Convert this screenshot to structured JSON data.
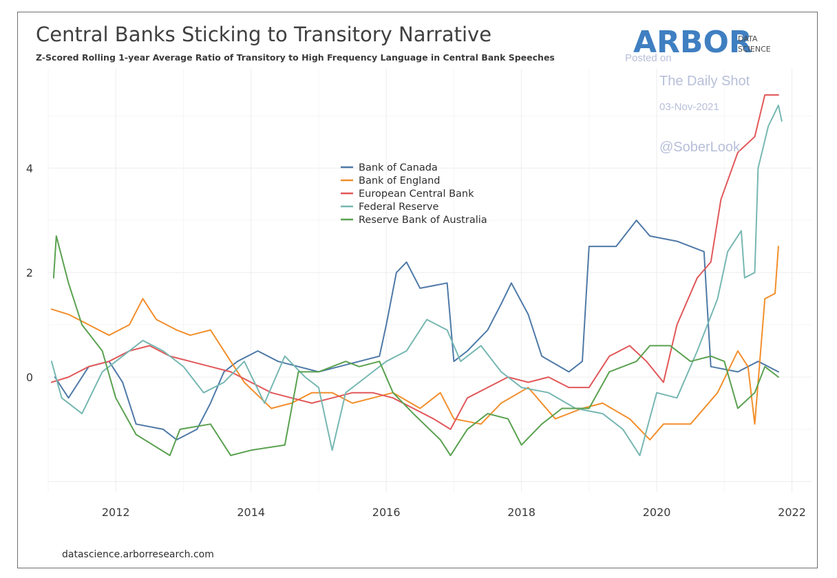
{
  "chart_data": {
    "type": "line",
    "title": "Central Banks Sticking to Transitory Narrative",
    "subtitle": "Z-Scored Rolling 1-year Average Ratio of Transitory to High Frequency Language in Central Bank Speeches",
    "xlabel": "",
    "ylabel": "",
    "xlim": [
      2011.0,
      2022.3
    ],
    "ylim": [
      -2.2,
      5.9
    ],
    "x_ticks": [
      2012,
      2014,
      2016,
      2018,
      2020,
      2022
    ],
    "y_ticks": [
      0,
      2,
      4
    ],
    "grid": true,
    "legend_position": "center-top",
    "series": [
      {
        "name": "Bank of Canada",
        "color": "#4e79a7",
        "points": [
          [
            2011.1,
            0.0
          ],
          [
            2011.3,
            -0.4
          ],
          [
            2011.6,
            0.2
          ],
          [
            2011.9,
            0.3
          ],
          [
            2012.1,
            -0.1
          ],
          [
            2012.3,
            -0.9
          ],
          [
            2012.7,
            -1.0
          ],
          [
            2012.9,
            -1.2
          ],
          [
            2013.2,
            -1.0
          ],
          [
            2013.4,
            -0.5
          ],
          [
            2013.6,
            0.1
          ],
          [
            2013.8,
            0.3
          ],
          [
            2014.1,
            0.5
          ],
          [
            2014.4,
            0.3
          ],
          [
            2014.7,
            0.2
          ],
          [
            2015.0,
            0.1
          ],
          [
            2015.3,
            0.2
          ],
          [
            2015.6,
            0.3
          ],
          [
            2015.9,
            0.4
          ],
          [
            2016.0,
            1.0
          ],
          [
            2016.15,
            2.0
          ],
          [
            2016.3,
            2.2
          ],
          [
            2016.5,
            1.7
          ],
          [
            2016.9,
            1.8
          ],
          [
            2017.0,
            0.3
          ],
          [
            2017.2,
            0.5
          ],
          [
            2017.5,
            0.9
          ],
          [
            2017.7,
            1.4
          ],
          [
            2017.85,
            1.8
          ],
          [
            2018.1,
            1.2
          ],
          [
            2018.3,
            0.4
          ],
          [
            2018.7,
            0.1
          ],
          [
            2018.9,
            0.3
          ],
          [
            2019.0,
            2.5
          ],
          [
            2019.4,
            2.5
          ],
          [
            2019.7,
            3.0
          ],
          [
            2019.9,
            2.7
          ],
          [
            2020.3,
            2.6
          ],
          [
            2020.7,
            2.4
          ],
          [
            2020.8,
            0.2
          ],
          [
            2021.2,
            0.1
          ],
          [
            2021.5,
            0.3
          ],
          [
            2021.8,
            0.1
          ]
        ]
      },
      {
        "name": "Bank of England",
        "color": "#f28e2b",
        "points": [
          [
            2011.05,
            1.3
          ],
          [
            2011.3,
            1.2
          ],
          [
            2011.6,
            1.0
          ],
          [
            2011.9,
            0.8
          ],
          [
            2012.2,
            1.0
          ],
          [
            2012.4,
            1.5
          ],
          [
            2012.6,
            1.1
          ],
          [
            2012.9,
            0.9
          ],
          [
            2013.1,
            0.8
          ],
          [
            2013.4,
            0.9
          ],
          [
            2013.7,
            0.3
          ],
          [
            2013.9,
            -0.1
          ],
          [
            2014.3,
            -0.6
          ],
          [
            2014.6,
            -0.5
          ],
          [
            2014.9,
            -0.3
          ],
          [
            2015.2,
            -0.3
          ],
          [
            2015.5,
            -0.5
          ],
          [
            2015.8,
            -0.4
          ],
          [
            2016.1,
            -0.3
          ],
          [
            2016.5,
            -0.6
          ],
          [
            2016.8,
            -0.3
          ],
          [
            2017.0,
            -0.8
          ],
          [
            2017.4,
            -0.9
          ],
          [
            2017.7,
            -0.5
          ],
          [
            2018.1,
            -0.2
          ],
          [
            2018.5,
            -0.8
          ],
          [
            2018.9,
            -0.6
          ],
          [
            2019.2,
            -0.5
          ],
          [
            2019.6,
            -0.8
          ],
          [
            2019.9,
            -1.2
          ],
          [
            2020.1,
            -0.9
          ],
          [
            2020.5,
            -0.9
          ],
          [
            2020.9,
            -0.3
          ],
          [
            2021.2,
            0.5
          ],
          [
            2021.35,
            0.2
          ],
          [
            2021.45,
            -0.9
          ],
          [
            2021.6,
            1.5
          ],
          [
            2021.75,
            1.6
          ],
          [
            2021.8,
            2.5
          ]
        ]
      },
      {
        "name": "European Central Bank",
        "color": "#e15759",
        "points": [
          [
            2011.05,
            -0.1
          ],
          [
            2011.3,
            0.0
          ],
          [
            2011.6,
            0.2
          ],
          [
            2011.9,
            0.3
          ],
          [
            2012.2,
            0.5
          ],
          [
            2012.5,
            0.6
          ],
          [
            2012.8,
            0.4
          ],
          [
            2013.1,
            0.3
          ],
          [
            2013.4,
            0.2
          ],
          [
            2013.7,
            0.1
          ],
          [
            2014.0,
            -0.1
          ],
          [
            2014.3,
            -0.3
          ],
          [
            2014.6,
            -0.4
          ],
          [
            2014.9,
            -0.5
          ],
          [
            2015.2,
            -0.4
          ],
          [
            2015.5,
            -0.3
          ],
          [
            2015.8,
            -0.3
          ],
          [
            2016.1,
            -0.4
          ],
          [
            2016.4,
            -0.6
          ],
          [
            2016.7,
            -0.8
          ],
          [
            2016.95,
            -1.0
          ],
          [
            2017.2,
            -0.4
          ],
          [
            2017.5,
            -0.2
          ],
          [
            2017.8,
            0.0
          ],
          [
            2018.1,
            -0.1
          ],
          [
            2018.4,
            0.0
          ],
          [
            2018.7,
            -0.2
          ],
          [
            2019.0,
            -0.2
          ],
          [
            2019.3,
            0.4
          ],
          [
            2019.6,
            0.6
          ],
          [
            2019.85,
            0.3
          ],
          [
            2020.1,
            -0.1
          ],
          [
            2020.3,
            1.0
          ],
          [
            2020.6,
            1.9
          ],
          [
            2020.8,
            2.2
          ],
          [
            2020.95,
            3.4
          ],
          [
            2021.2,
            4.3
          ],
          [
            2021.45,
            4.6
          ],
          [
            2021.6,
            5.4
          ],
          [
            2021.8,
            5.4
          ]
        ]
      },
      {
        "name": "Federal Reserve",
        "color": "#76b7b2",
        "points": [
          [
            2011.05,
            0.3
          ],
          [
            2011.2,
            -0.4
          ],
          [
            2011.5,
            -0.7
          ],
          [
            2011.8,
            0.1
          ],
          [
            2012.1,
            0.4
          ],
          [
            2012.4,
            0.7
          ],
          [
            2012.7,
            0.5
          ],
          [
            2013.0,
            0.2
          ],
          [
            2013.3,
            -0.3
          ],
          [
            2013.6,
            -0.1
          ],
          [
            2013.9,
            0.3
          ],
          [
            2014.2,
            -0.5
          ],
          [
            2014.5,
            0.4
          ],
          [
            2014.8,
            0.0
          ],
          [
            2015.0,
            -0.2
          ],
          [
            2015.2,
            -1.4
          ],
          [
            2015.4,
            -0.3
          ],
          [
            2015.7,
            0.0
          ],
          [
            2016.0,
            0.3
          ],
          [
            2016.3,
            0.5
          ],
          [
            2016.6,
            1.1
          ],
          [
            2016.9,
            0.9
          ],
          [
            2017.1,
            0.3
          ],
          [
            2017.4,
            0.6
          ],
          [
            2017.7,
            0.1
          ],
          [
            2018.0,
            -0.2
          ],
          [
            2018.4,
            -0.3
          ],
          [
            2018.8,
            -0.6
          ],
          [
            2019.2,
            -0.7
          ],
          [
            2019.5,
            -1.0
          ],
          [
            2019.75,
            -1.5
          ],
          [
            2020.0,
            -0.3
          ],
          [
            2020.3,
            -0.4
          ],
          [
            2020.6,
            0.5
          ],
          [
            2020.9,
            1.5
          ],
          [
            2021.05,
            2.4
          ],
          [
            2021.25,
            2.8
          ],
          [
            2021.3,
            1.9
          ],
          [
            2021.45,
            2.0
          ],
          [
            2021.5,
            4.0
          ],
          [
            2021.65,
            4.8
          ],
          [
            2021.8,
            5.2
          ],
          [
            2021.85,
            4.9
          ]
        ]
      },
      {
        "name": "Reserve Bank of Australia",
        "color": "#59a14f",
        "points": [
          [
            2011.08,
            1.9
          ],
          [
            2011.12,
            2.7
          ],
          [
            2011.3,
            1.8
          ],
          [
            2011.5,
            1.0
          ],
          [
            2011.8,
            0.5
          ],
          [
            2012.0,
            -0.4
          ],
          [
            2012.3,
            -1.1
          ],
          [
            2012.8,
            -1.5
          ],
          [
            2012.95,
            -1.0
          ],
          [
            2013.4,
            -0.9
          ],
          [
            2013.7,
            -1.5
          ],
          [
            2014.0,
            -1.4
          ],
          [
            2014.5,
            -1.3
          ],
          [
            2014.7,
            0.1
          ],
          [
            2015.0,
            0.1
          ],
          [
            2015.4,
            0.3
          ],
          [
            2015.6,
            0.2
          ],
          [
            2015.9,
            0.3
          ],
          [
            2016.1,
            -0.3
          ],
          [
            2016.4,
            -0.7
          ],
          [
            2016.8,
            -1.2
          ],
          [
            2016.95,
            -1.5
          ],
          [
            2017.2,
            -1.0
          ],
          [
            2017.5,
            -0.7
          ],
          [
            2017.8,
            -0.8
          ],
          [
            2018.0,
            -1.3
          ],
          [
            2018.3,
            -0.9
          ],
          [
            2018.6,
            -0.6
          ],
          [
            2019.0,
            -0.6
          ],
          [
            2019.3,
            0.1
          ],
          [
            2019.7,
            0.3
          ],
          [
            2019.9,
            0.6
          ],
          [
            2020.2,
            0.6
          ],
          [
            2020.5,
            0.3
          ],
          [
            2020.8,
            0.4
          ],
          [
            2021.0,
            0.3
          ],
          [
            2021.2,
            -0.6
          ],
          [
            2021.45,
            -0.3
          ],
          [
            2021.6,
            0.2
          ],
          [
            2021.8,
            0.0
          ]
        ]
      }
    ],
    "source": "datascience.arborresearch.com"
  },
  "branding": {
    "logo_main": "ARBOR",
    "logo_sub1": "DATA",
    "logo_sub2": "SCIENCE",
    "logo_color": "#3f7fc1"
  },
  "watermark": {
    "line1": "Posted on",
    "line2": "The Daily Shot",
    "line3": "03-Nov-2021",
    "line4": "@SoberLook"
  }
}
